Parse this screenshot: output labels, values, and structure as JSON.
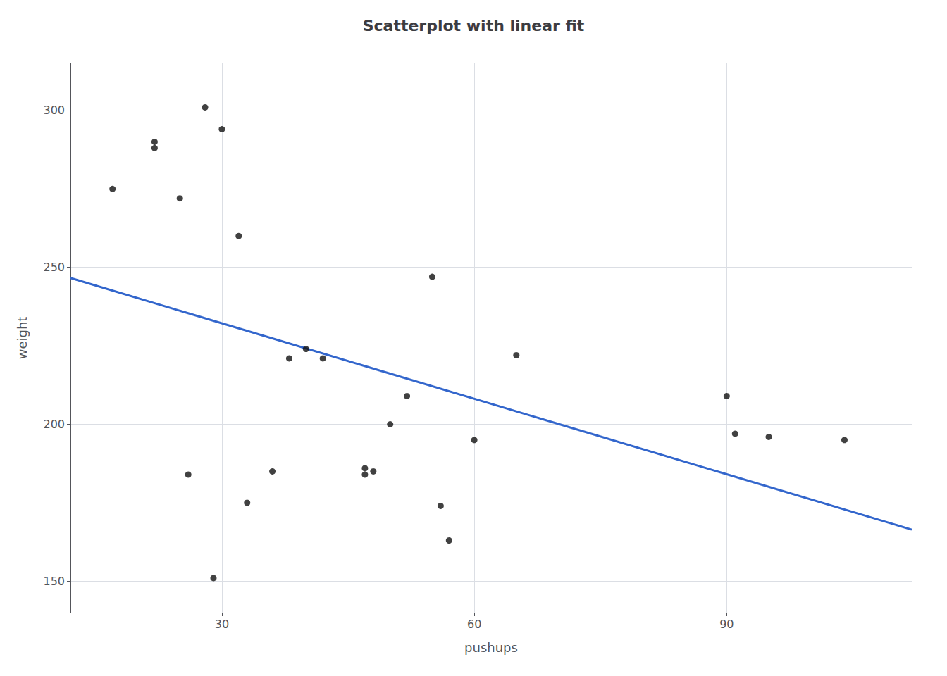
{
  "chart_data": {
    "type": "scatter",
    "title": "Scatterplot with linear fit",
    "xlabel": "pushups",
    "ylabel": "weight",
    "series": [
      {
        "type": "scatter",
        "color": "#111111",
        "x": [
          17,
          22,
          22,
          25,
          26,
          28,
          29,
          30,
          32,
          33,
          36,
          38,
          40,
          42,
          47,
          47,
          48,
          50,
          52,
          55,
          56,
          57,
          60,
          65,
          90,
          91,
          95,
          104
        ],
        "values": [
          275,
          290,
          288,
          272,
          184,
          301,
          151,
          294,
          260,
          175,
          185,
          221,
          224,
          221,
          184,
          186,
          185,
          200,
          209,
          247,
          174,
          163,
          195,
          222,
          209,
          197,
          196,
          195
        ]
      },
      {
        "type": "line",
        "color": "#3366cc",
        "x": [
          12,
          112
        ],
        "values": [
          246.62,
          166.46
        ]
      }
    ],
    "xlim": [
      12,
      112
    ],
    "xticks": [
      30,
      60,
      90
    ],
    "ylim": [
      140,
      315
    ],
    "yticks": [
      150,
      200,
      250,
      300
    ],
    "grid": true
  }
}
